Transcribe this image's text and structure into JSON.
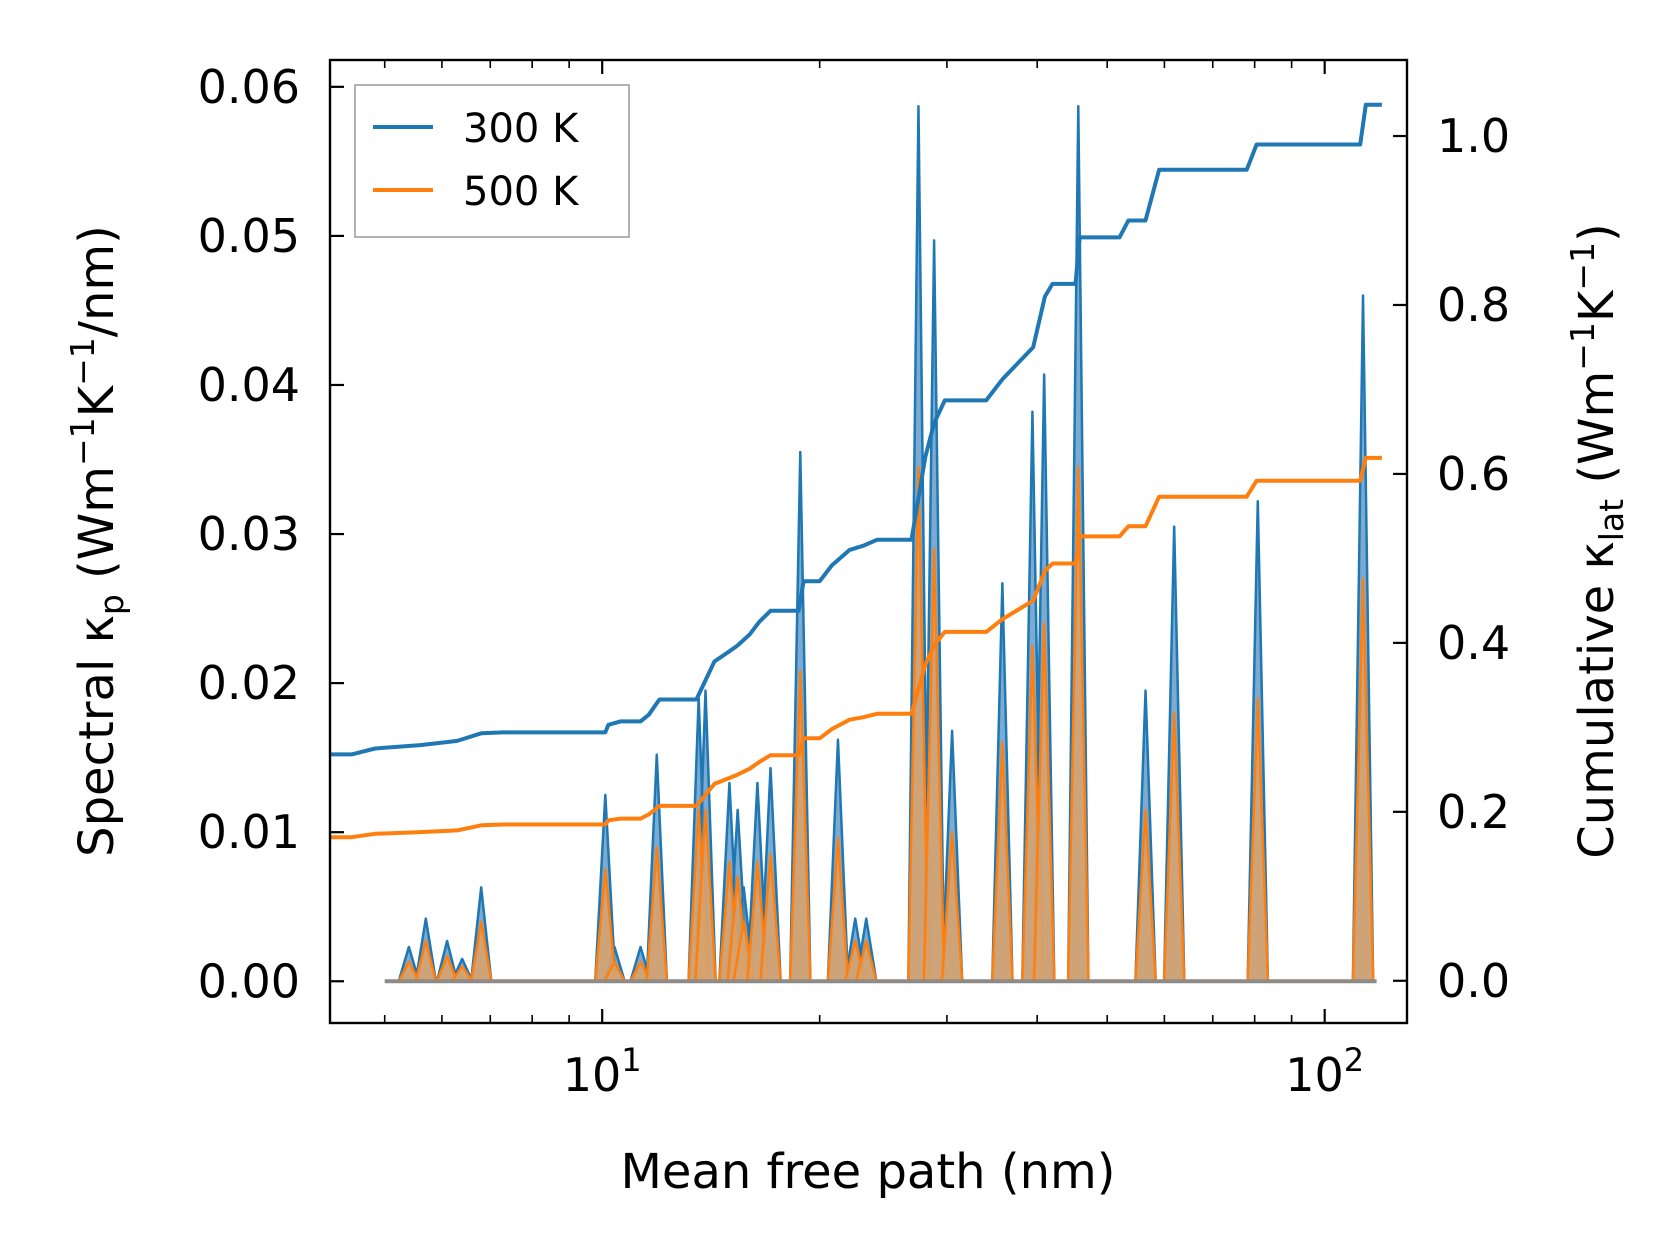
{
  "chart_data": {
    "type": "line",
    "xscale": "log",
    "xlim": [
      4.2,
      130
    ],
    "xlabel": "Mean free path (nm)",
    "x_ticks": [
      {
        "value": 10,
        "base": "10",
        "exp": "1"
      },
      {
        "value": 100,
        "base": "10",
        "exp": "2"
      }
    ],
    "left_axis": {
      "label_prefix": "Spectral κ",
      "label_sub": "p",
      "label_unit_open": " (Wm",
      "label_unit_exp1": "−1",
      "label_unit_mid": "K",
      "label_unit_exp2": "−1",
      "label_unit_close": "/nm)",
      "ylim": [
        -0.0028,
        0.0618
      ],
      "ticks": [
        "0.00",
        "0.01",
        "0.02",
        "0.03",
        "0.04",
        "0.05",
        "0.06"
      ]
    },
    "right_axis": {
      "label_prefix": "Cumulative κ",
      "label_sub": "lat",
      "label_unit_open": " (Wm",
      "label_unit_exp1": "−1",
      "label_unit_mid": "K",
      "label_unit_exp2": "−1",
      "label_unit_close": ")",
      "ylim": [
        -0.05,
        1.09
      ],
      "ticks": [
        "0.0",
        "0.2",
        "0.4",
        "0.6",
        "0.8",
        "1.0"
      ]
    },
    "legend": {
      "position": "top-left"
    },
    "spectral_peaks": [
      [
        5.4,
        0.0023,
        0.0013
      ],
      [
        5.7,
        0.0042,
        0.0027
      ],
      [
        6.1,
        0.0027,
        0.0017
      ],
      [
        6.4,
        0.0015,
        0.001
      ],
      [
        6.8,
        0.0063,
        0.004
      ],
      [
        10.1,
        0.0125,
        0.0075
      ],
      [
        10.4,
        0.0023,
        0.0013
      ],
      [
        11.3,
        0.0023,
        0.0013
      ],
      [
        11.9,
        0.0152,
        0.009
      ],
      [
        13.6,
        0.019,
        0.0115
      ],
      [
        13.9,
        0.0195,
        0.0115
      ],
      [
        15.0,
        0.0133,
        0.008
      ],
      [
        15.4,
        0.0115,
        0.007
      ],
      [
        15.7,
        0.0063,
        0.004
      ],
      [
        16.4,
        0.0133,
        0.008
      ],
      [
        17.1,
        0.0143,
        0.0085
      ],
      [
        18.8,
        0.0355,
        0.0208
      ],
      [
        21.2,
        0.0162,
        0.0096
      ],
      [
        22.4,
        0.0042,
        0.0027
      ],
      [
        23.2,
        0.0042,
        0.0027
      ],
      [
        27.4,
        0.0587,
        0.0345
      ],
      [
        28.8,
        0.0497,
        0.029
      ],
      [
        30.5,
        0.0168,
        0.01
      ],
      [
        35.8,
        0.0267,
        0.016
      ],
      [
        39.4,
        0.0382,
        0.0225
      ],
      [
        40.9,
        0.0407,
        0.024
      ],
      [
        45.6,
        0.0587,
        0.0345
      ],
      [
        56.5,
        0.0195,
        0.0115
      ],
      [
        61.9,
        0.0305,
        0.018
      ],
      [
        80.8,
        0.0322,
        0.019
      ],
      [
        113.0,
        0.046,
        0.027
      ]
    ],
    "series": [
      {
        "name": "300 K",
        "color": "#1f77b4",
        "cumulative": [
          [
            4.2,
            0.268
          ],
          [
            4.5,
            0.268
          ],
          [
            4.85,
            0.275
          ],
          [
            5.6,
            0.279
          ],
          [
            6.3,
            0.284
          ],
          [
            6.8,
            0.293
          ],
          [
            7.3,
            0.294
          ],
          [
            10.1,
            0.294
          ],
          [
            10.2,
            0.303
          ],
          [
            10.6,
            0.307
          ],
          [
            11.3,
            0.307
          ],
          [
            11.6,
            0.315
          ],
          [
            12.0,
            0.333
          ],
          [
            13.5,
            0.333
          ],
          [
            14.3,
            0.378
          ],
          [
            15.0,
            0.39
          ],
          [
            15.4,
            0.397
          ],
          [
            16.0,
            0.41
          ],
          [
            16.5,
            0.425
          ],
          [
            17.1,
            0.438
          ],
          [
            18.7,
            0.438
          ],
          [
            19.0,
            0.473
          ],
          [
            20.0,
            0.473
          ],
          [
            20.8,
            0.492
          ],
          [
            22.0,
            0.51
          ],
          [
            23.0,
            0.515
          ],
          [
            24.0,
            0.522
          ],
          [
            26.8,
            0.522
          ],
          [
            28.0,
            0.62
          ],
          [
            28.8,
            0.66
          ],
          [
            29.8,
            0.687
          ],
          [
            34.0,
            0.687
          ],
          [
            35.8,
            0.712
          ],
          [
            39.5,
            0.75
          ],
          [
            41.0,
            0.81
          ],
          [
            42.0,
            0.825
          ],
          [
            45.2,
            0.825
          ],
          [
            45.8,
            0.88
          ],
          [
            52.0,
            0.88
          ],
          [
            53.5,
            0.9
          ],
          [
            56.5,
            0.9
          ],
          [
            59.0,
            0.96
          ],
          [
            78.0,
            0.96
          ],
          [
            80.5,
            0.99
          ],
          [
            112.0,
            0.99
          ],
          [
            114.0,
            1.037
          ],
          [
            120.0,
            1.037
          ]
        ]
      },
      {
        "name": "500 K",
        "color": "#ff7f0e",
        "cumulative": [
          [
            4.2,
            0.17
          ],
          [
            4.5,
            0.17
          ],
          [
            4.85,
            0.174
          ],
          [
            5.6,
            0.176
          ],
          [
            6.3,
            0.178
          ],
          [
            6.8,
            0.184
          ],
          [
            7.3,
            0.185
          ],
          [
            10.1,
            0.185
          ],
          [
            10.2,
            0.19
          ],
          [
            10.6,
            0.192
          ],
          [
            11.3,
            0.192
          ],
          [
            11.6,
            0.197
          ],
          [
            12.0,
            0.207
          ],
          [
            13.5,
            0.207
          ],
          [
            14.3,
            0.233
          ],
          [
            15.0,
            0.24
          ],
          [
            15.4,
            0.244
          ],
          [
            16.0,
            0.251
          ],
          [
            16.5,
            0.259
          ],
          [
            17.1,
            0.267
          ],
          [
            18.7,
            0.267
          ],
          [
            19.0,
            0.287
          ],
          [
            20.0,
            0.287
          ],
          [
            20.8,
            0.298
          ],
          [
            22.0,
            0.309
          ],
          [
            23.0,
            0.312
          ],
          [
            24.0,
            0.316
          ],
          [
            26.8,
            0.316
          ],
          [
            28.0,
            0.374
          ],
          [
            28.8,
            0.397
          ],
          [
            29.8,
            0.413
          ],
          [
            34.0,
            0.413
          ],
          [
            35.8,
            0.428
          ],
          [
            39.5,
            0.45
          ],
          [
            41.0,
            0.485
          ],
          [
            42.0,
            0.494
          ],
          [
            45.2,
            0.494
          ],
          [
            45.8,
            0.526
          ],
          [
            52.0,
            0.526
          ],
          [
            53.5,
            0.538
          ],
          [
            56.5,
            0.538
          ],
          [
            59.0,
            0.573
          ],
          [
            78.0,
            0.573
          ],
          [
            80.5,
            0.592
          ],
          [
            112.0,
            0.592
          ],
          [
            114.0,
            0.619
          ],
          [
            120.0,
            0.619
          ]
        ]
      }
    ]
  }
}
